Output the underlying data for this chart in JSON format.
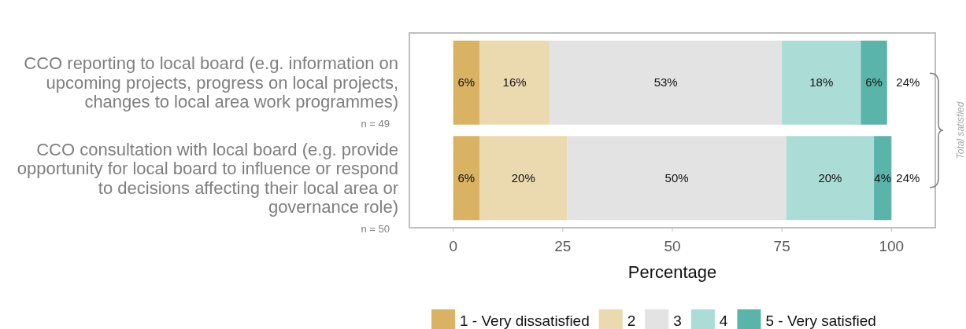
{
  "chart_data": {
    "type": "bar",
    "orientation": "horizontal",
    "stacked": true,
    "xlabel": "Percentage",
    "categories": [
      "CCO reporting to local board (e.g. information on upcoming projects, progress on local projects, changes to local area work programmes)",
      "CCO consultation with local board (e.g. provide opportunity for local board to influence or respond to decisions affecting their local area or governance role)"
    ],
    "series": [
      {
        "name": "1 - Very dissatisfied",
        "color": "#d9b264",
        "values": [
          6,
          6
        ],
        "value_labels": [
          "6%",
          "6%"
        ]
      },
      {
        "name": "2",
        "color": "#ebd9b0",
        "values": [
          16,
          20
        ],
        "value_labels": [
          "16%",
          "20%"
        ]
      },
      {
        "name": "3",
        "color": "#e3e3e3",
        "values": [
          53,
          50
        ],
        "value_labels": [
          "53%",
          "50%"
        ]
      },
      {
        "name": "4",
        "color": "#acdcd6",
        "values": [
          18,
          20
        ],
        "value_labels": [
          "18%",
          "20%"
        ]
      },
      {
        "name": "5 - Very satisfied",
        "color": "#5ab4a9",
        "values": [
          6,
          4
        ],
        "value_labels": [
          "6%",
          "4%"
        ]
      }
    ],
    "xlim": [
      -10,
      110
    ],
    "xticks": [
      0,
      25,
      50,
      75,
      100
    ],
    "grid": false,
    "legend": "bottom",
    "annotations": [
      "n = 49",
      "n = 50",
      "24%",
      "24%",
      "Total satisfied"
    ]
  }
}
